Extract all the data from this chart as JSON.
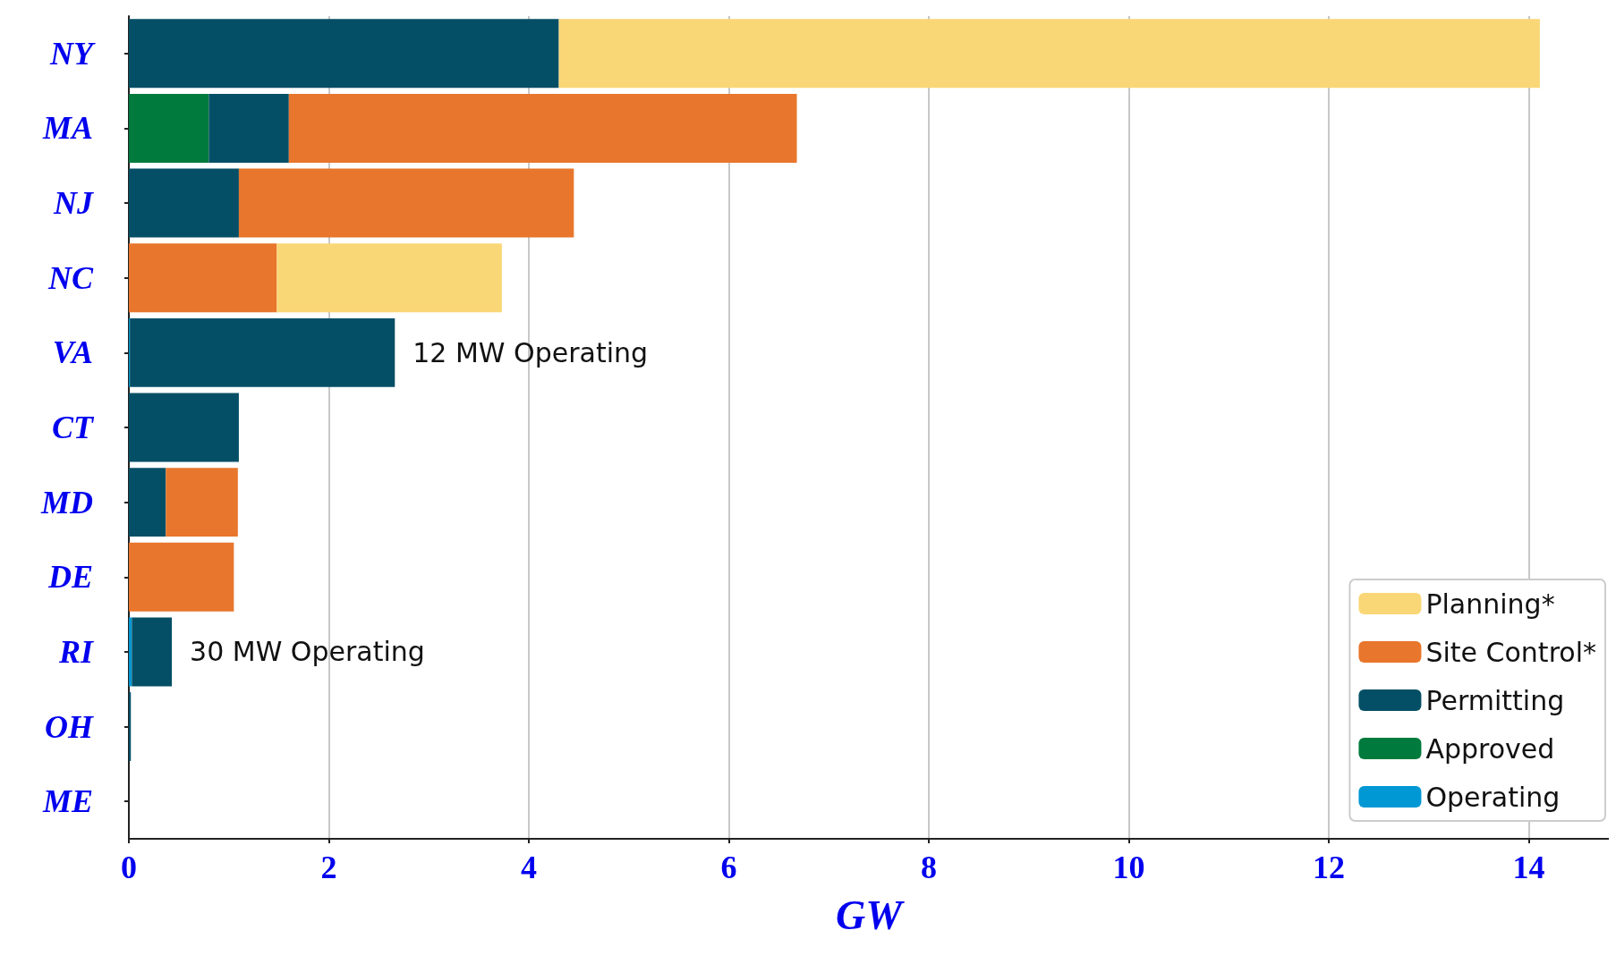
{
  "chart_data": {
    "type": "bar",
    "orientation": "horizontal",
    "stacked": true,
    "xlabel": "GW",
    "categories": [
      "NY",
      "MA",
      "NJ",
      "NC",
      "VA",
      "CT",
      "MD",
      "DE",
      "RI",
      "OH",
      "ME"
    ],
    "series": [
      {
        "name": "Operating",
        "color": "#0098d4",
        "values": [
          null,
          null,
          null,
          null,
          0.01,
          null,
          null,
          null,
          0.03,
          null,
          null
        ]
      },
      {
        "name": "Approved",
        "color": "#007a3d",
        "values": [
          null,
          0.8,
          null,
          null,
          null,
          null,
          null,
          null,
          null,
          null,
          null
        ]
      },
      {
        "name": "Permitting",
        "color": "#054f66",
        "values": [
          4.3,
          0.8,
          1.1,
          null,
          2.65,
          1.1,
          0.37,
          null,
          0.4,
          0.02,
          null
        ]
      },
      {
        "name": "Site Control*",
        "color": "#e8762c",
        "values": [
          null,
          5.08,
          3.35,
          1.48,
          null,
          null,
          0.72,
          1.05,
          null,
          null,
          null
        ]
      },
      {
        "name": "Planning*",
        "color": "#fad776",
        "values": [
          9.81,
          null,
          null,
          2.25,
          null,
          null,
          null,
          null,
          null,
          null,
          null
        ]
      }
    ],
    "xlim": [
      0,
      14.8
    ],
    "xticks": [
      0,
      2,
      4,
      6,
      8,
      10,
      12,
      14
    ],
    "grid": "x",
    "legend": "bottom right",
    "annotations": [
      "12 MW Operating",
      "30 MW Operating"
    ]
  }
}
